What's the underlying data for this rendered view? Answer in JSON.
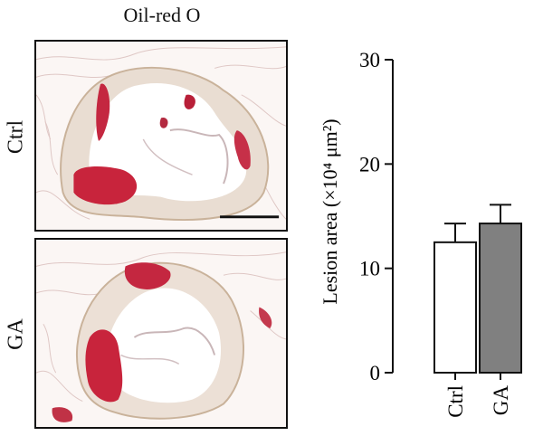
{
  "figure": {
    "panel_title": "Oil-red O",
    "row_labels": [
      "Ctrl",
      "GA"
    ],
    "scale_bar": true
  },
  "chart_data": {
    "type": "bar",
    "categories": [
      "Ctrl",
      "GA"
    ],
    "values": [
      12.5,
      14.3
    ],
    "error": [
      1.8,
      1.8
    ],
    "colors": [
      "#ffffff",
      "#808080"
    ],
    "ylabel": "Lesion area (×10⁴ μm²)",
    "xlabel": "",
    "ylim": [
      0,
      30
    ],
    "yticks": [
      0,
      10,
      20,
      30
    ],
    "grid": false
  }
}
